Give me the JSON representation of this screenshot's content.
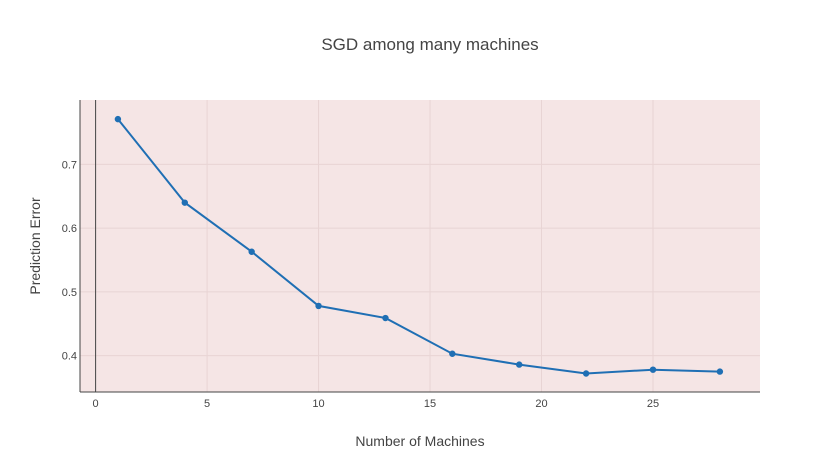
{
  "chart_data": {
    "type": "line",
    "title": "SGD among many machines",
    "xlabel": "Number of Machines",
    "ylabel": "Prediction Error",
    "xlim": [
      -0.7,
      29.8
    ],
    "ylim": [
      0.343,
      0.801
    ],
    "xticks": [
      0,
      5,
      10,
      15,
      20,
      25
    ],
    "yticks": [
      0.4,
      0.5,
      0.6,
      0.7
    ],
    "grid": true,
    "background_color": "#f5e5e5",
    "grid_color": "#e8d4d4",
    "line_color": "#1f6fb4",
    "series": [
      {
        "x": [
          1,
          4,
          7,
          10,
          13,
          16,
          19,
          22,
          25,
          28
        ],
        "y": [
          0.771,
          0.64,
          0.563,
          0.478,
          0.459,
          0.403,
          0.386,
          0.372,
          0.378,
          0.375
        ]
      }
    ]
  }
}
